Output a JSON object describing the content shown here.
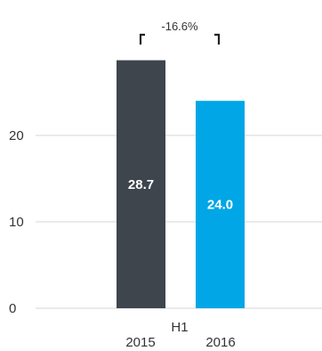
{
  "chart_data": {
    "type": "bar",
    "categories": [
      "2015",
      "2016"
    ],
    "group_label": "H1",
    "values": [
      28.7,
      24.0
    ],
    "value_labels": [
      "28.7",
      "24.0"
    ],
    "bar_colors": [
      "#3f454c",
      "#00a6e6"
    ],
    "yticks": [
      0,
      10,
      20
    ],
    "ytick_labels": [
      "0",
      "10",
      "20"
    ],
    "ylim": [
      0,
      30
    ],
    "grid": true,
    "annotation": {
      "text": "-16.6%",
      "from": "2015",
      "to": "2016"
    }
  }
}
